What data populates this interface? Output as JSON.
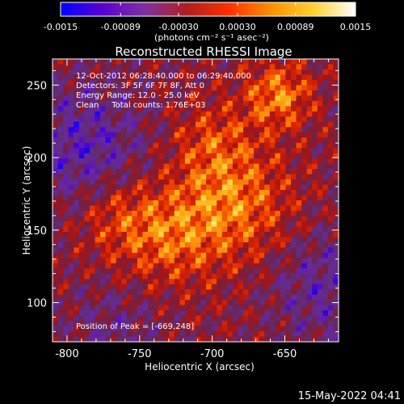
{
  "colorbar": {
    "tick_labels": [
      "-0.0015",
      "-0.00089",
      "-0.00030",
      "0.00030",
      "0.00089",
      "0.0015"
    ],
    "tick_values": [
      -0.0015,
      -0.00089,
      -0.0003,
      0.0003,
      0.00089,
      0.0015
    ],
    "range": [
      -0.0015,
      0.0015
    ],
    "unit_label": "(photons cm⁻² s⁻¹ asec⁻²)",
    "colors": [
      "#0000ff",
      "#5a00d2",
      "#8030a0",
      "#b01e1e",
      "#ff3000",
      "#ff9000",
      "#ffd030",
      "#ffffff"
    ]
  },
  "chart_data": {
    "type": "heatmap",
    "title": "Reconstructed RHESSI Image",
    "xlabel": "Heliocentric X (arcsec)",
    "ylabel": "Heliocentric Y (arcsec)",
    "xlim": [
      -810,
      -613
    ],
    "ylim": [
      73,
      268
    ],
    "xticks": [
      -800,
      -750,
      -700,
      -650
    ],
    "yticks": [
      100,
      150,
      200,
      250
    ],
    "xtick_labels": [
      "-800",
      "-750",
      "-700",
      "-650"
    ],
    "ytick_labels": [
      "100",
      "150",
      "200",
      "250"
    ],
    "annotations": [
      "12-Oct-2012 06:28:40.000 to 06:29:40.000",
      "Detectors: 3F 5F 6F 7F 8F, Att 0",
      "Energy Range: 12.0 - 25.0 keV",
      "Clean     Total counts: 1.76E+03"
    ],
    "peak_label": "Position of Peak = [-669,248]",
    "peak": [
      -669,
      248
    ],
    "grid": false
  },
  "footer": {
    "timestamp": "15-May-2022 04:41"
  }
}
